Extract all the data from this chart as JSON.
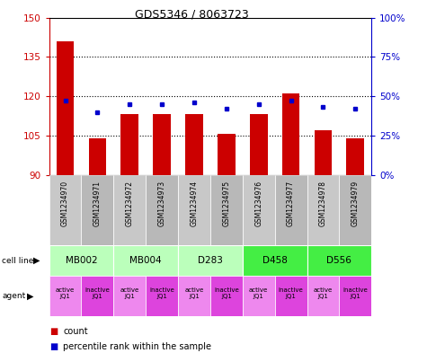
{
  "title": "GDS5346 / 8063723",
  "samples": [
    "GSM1234970",
    "GSM1234971",
    "GSM1234972",
    "GSM1234973",
    "GSM1234974",
    "GSM1234975",
    "GSM1234976",
    "GSM1234977",
    "GSM1234978",
    "GSM1234979"
  ],
  "count_values": [
    141,
    104,
    113,
    113,
    113,
    105.5,
    113,
    121,
    107,
    104
  ],
  "percentile_values": [
    47,
    40,
    45,
    45,
    46,
    42,
    45,
    47,
    43,
    42
  ],
  "y_min": 90,
  "y_max": 150,
  "y_ticks": [
    90,
    105,
    120,
    135,
    150
  ],
  "y2_ticks": [
    0,
    25,
    50,
    75,
    100
  ],
  "y2_labels": [
    "0%",
    "25%",
    "50%",
    "75%",
    "100%"
  ],
  "bar_color": "#cc0000",
  "dot_color": "#0000cc",
  "cell_lines": [
    {
      "label": "MB002",
      "start": 0,
      "end": 2,
      "color": "#bbffbb"
    },
    {
      "label": "MB004",
      "start": 2,
      "end": 4,
      "color": "#bbffbb"
    },
    {
      "label": "D283",
      "start": 4,
      "end": 6,
      "color": "#bbffbb"
    },
    {
      "label": "D458",
      "start": 6,
      "end": 8,
      "color": "#44ee44"
    },
    {
      "label": "D556",
      "start": 8,
      "end": 10,
      "color": "#44ee44"
    }
  ],
  "agents": [
    {
      "label": "active\nJQ1",
      "idx": 0,
      "color": "#ee88ee"
    },
    {
      "label": "inactive\nJQ1",
      "idx": 1,
      "color": "#dd44dd"
    },
    {
      "label": "active\nJQ1",
      "idx": 2,
      "color": "#ee88ee"
    },
    {
      "label": "inactive\nJQ1",
      "idx": 3,
      "color": "#dd44dd"
    },
    {
      "label": "active\nJQ1",
      "idx": 4,
      "color": "#ee88ee"
    },
    {
      "label": "inactive\nJQ1",
      "idx": 5,
      "color": "#dd44dd"
    },
    {
      "label": "active\nJQ1",
      "idx": 6,
      "color": "#ee88ee"
    },
    {
      "label": "inactive\nJQ1",
      "idx": 7,
      "color": "#dd44dd"
    },
    {
      "label": "active\nJQ1",
      "idx": 8,
      "color": "#ee88ee"
    },
    {
      "label": "inactive\nJQ1",
      "idx": 9,
      "color": "#dd44dd"
    }
  ]
}
